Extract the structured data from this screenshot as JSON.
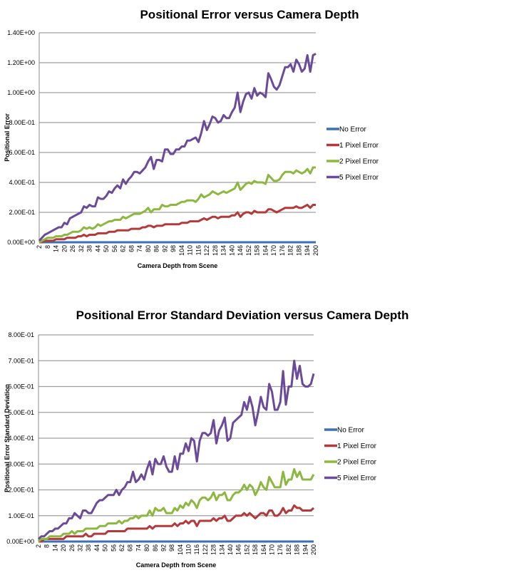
{
  "colors": {
    "No Error": "#3b6fb6",
    "1 Pixel Error": "#b3393a",
    "2 Pixel Error": "#8db840",
    "5 Pixel Error": "#6b4a9a",
    "grid": "#a0a0a0"
  },
  "chart_data": [
    {
      "type": "line",
      "title": "Positional Error versus Camera Depth",
      "xlabel": "Camera Depth from Scene",
      "ylabel": "Positional Error",
      "ylim": [
        0,
        1.4
      ],
      "yticks": [
        "0.00E+00",
        "2.00E-01",
        "4.00E-01",
        "6.00E-01",
        "8.00E-01",
        "1.00E+00",
        "1.20E+00",
        "1.40E+00"
      ],
      "x_start": 2,
      "x_end": 200,
      "x_step": 2,
      "xtick_labels": [
        "2",
        "8",
        "14",
        "20",
        "26",
        "32",
        "38",
        "44",
        "50",
        "56",
        "62",
        "68",
        "74",
        "80",
        "86",
        "92",
        "98",
        "104",
        "110",
        "116",
        "122",
        "128",
        "134",
        "140",
        "146",
        "152",
        "158",
        "164",
        "170",
        "176",
        "182",
        "188",
        "194",
        "200"
      ],
      "grid": "horizontal",
      "legend": "right",
      "series": [
        {
          "name": "No Error",
          "values": [
            0,
            0,
            0,
            0,
            0,
            0,
            0,
            0,
            0,
            0,
            0,
            0,
            0,
            0,
            0,
            0,
            0,
            0,
            0,
            0,
            0,
            0,
            0,
            0,
            0,
            0,
            0,
            0,
            0,
            0,
            0,
            0,
            0,
            0,
            0,
            0,
            0,
            0,
            0,
            0,
            0,
            0,
            0,
            0,
            0,
            0,
            0,
            0,
            0,
            0,
            0,
            0,
            0,
            0,
            0,
            0,
            0,
            0,
            0,
            0,
            0,
            0,
            0,
            0,
            0,
            0,
            0,
            0,
            0,
            0,
            0,
            0,
            0,
            0,
            0,
            0,
            0,
            0,
            0,
            0,
            0,
            0,
            0,
            0,
            0,
            0,
            0,
            0,
            0,
            0,
            0,
            0,
            0,
            0,
            0,
            0,
            0,
            0,
            0,
            0
          ]
        },
        {
          "name": "1 Pixel Error",
          "values": [
            0.0,
            0.0,
            0.01,
            0.01,
            0.01,
            0.01,
            0.02,
            0.02,
            0.02,
            0.02,
            0.03,
            0.03,
            0.03,
            0.03,
            0.04,
            0.04,
            0.05,
            0.04,
            0.05,
            0.05,
            0.05,
            0.06,
            0.06,
            0.06,
            0.06,
            0.07,
            0.07,
            0.07,
            0.08,
            0.08,
            0.08,
            0.08,
            0.08,
            0.09,
            0.09,
            0.09,
            0.09,
            0.1,
            0.1,
            0.11,
            0.11,
            0.1,
            0.11,
            0.11,
            0.11,
            0.12,
            0.12,
            0.12,
            0.12,
            0.12,
            0.12,
            0.13,
            0.13,
            0.13,
            0.14,
            0.14,
            0.14,
            0.14,
            0.15,
            0.16,
            0.15,
            0.16,
            0.17,
            0.17,
            0.16,
            0.17,
            0.17,
            0.17,
            0.17,
            0.18,
            0.18,
            0.2,
            0.17,
            0.19,
            0.2,
            0.2,
            0.19,
            0.21,
            0.2,
            0.2,
            0.2,
            0.2,
            0.22,
            0.22,
            0.21,
            0.2,
            0.21,
            0.22,
            0.23,
            0.23,
            0.23,
            0.23,
            0.24,
            0.23,
            0.23,
            0.24,
            0.25,
            0.23,
            0.25,
            0.25
          ]
        },
        {
          "name": "2 Pixel Error",
          "values": [
            0.0,
            0.01,
            0.02,
            0.03,
            0.03,
            0.03,
            0.04,
            0.04,
            0.04,
            0.05,
            0.05,
            0.06,
            0.07,
            0.07,
            0.07,
            0.08,
            0.1,
            0.09,
            0.1,
            0.09,
            0.1,
            0.12,
            0.11,
            0.12,
            0.13,
            0.14,
            0.14,
            0.15,
            0.15,
            0.15,
            0.17,
            0.16,
            0.17,
            0.18,
            0.19,
            0.19,
            0.19,
            0.2,
            0.21,
            0.23,
            0.2,
            0.22,
            0.22,
            0.22,
            0.25,
            0.24,
            0.24,
            0.25,
            0.25,
            0.25,
            0.26,
            0.27,
            0.27,
            0.28,
            0.28,
            0.28,
            0.27,
            0.29,
            0.32,
            0.3,
            0.31,
            0.32,
            0.34,
            0.33,
            0.32,
            0.33,
            0.34,
            0.33,
            0.34,
            0.35,
            0.36,
            0.4,
            0.35,
            0.37,
            0.39,
            0.4,
            0.39,
            0.41,
            0.4,
            0.4,
            0.4,
            0.39,
            0.45,
            0.43,
            0.41,
            0.41,
            0.42,
            0.45,
            0.47,
            0.47,
            0.47,
            0.46,
            0.48,
            0.47,
            0.46,
            0.47,
            0.49,
            0.46,
            0.5,
            0.5
          ]
        },
        {
          "name": "5 Pixel Error",
          "values": [
            0.01,
            0.03,
            0.05,
            0.06,
            0.07,
            0.08,
            0.09,
            0.1,
            0.1,
            0.13,
            0.12,
            0.16,
            0.17,
            0.18,
            0.19,
            0.2,
            0.24,
            0.23,
            0.25,
            0.24,
            0.24,
            0.3,
            0.29,
            0.29,
            0.31,
            0.34,
            0.33,
            0.36,
            0.38,
            0.36,
            0.42,
            0.39,
            0.42,
            0.44,
            0.47,
            0.47,
            0.46,
            0.48,
            0.5,
            0.54,
            0.57,
            0.49,
            0.55,
            0.55,
            0.54,
            0.62,
            0.62,
            0.59,
            0.59,
            0.62,
            0.62,
            0.64,
            0.64,
            0.68,
            0.68,
            0.69,
            0.7,
            0.67,
            0.73,
            0.81,
            0.75,
            0.79,
            0.84,
            0.83,
            0.8,
            0.81,
            0.85,
            0.83,
            0.83,
            0.87,
            0.9,
            1.0,
            0.87,
            0.94,
            0.99,
            1.0,
            0.96,
            1.03,
            0.98,
            1.0,
            0.99,
            0.97,
            1.13,
            1.09,
            1.04,
            1.02,
            1.05,
            1.11,
            1.17,
            1.17,
            1.19,
            1.14,
            1.22,
            1.19,
            1.14,
            1.16,
            1.25,
            1.14,
            1.25,
            1.26
          ]
        }
      ]
    },
    {
      "type": "line",
      "title": "Positional Error Standard Deviation versus Camera Depth",
      "xlabel": "Camera Depth from Scene",
      "ylabel": "Positional Error Standard Deviation",
      "ylim": [
        0,
        0.8
      ],
      "yticks": [
        "0.00E+00",
        "1.00E-01",
        "2.00E-01",
        "3.00E-01",
        "4.00E-01",
        "5.00E-01",
        "6.00E-01",
        "7.00E-01",
        "8.00E-01"
      ],
      "x_start": 2,
      "x_end": 200,
      "x_step": 2,
      "xtick_labels": [
        "2",
        "8",
        "14",
        "20",
        "26",
        "32",
        "38",
        "44",
        "50",
        "56",
        "62",
        "68",
        "74",
        "80",
        "86",
        "92",
        "98",
        "104",
        "110",
        "116",
        "122",
        "128",
        "134",
        "140",
        "146",
        "152",
        "158",
        "164",
        "170",
        "176",
        "182",
        "188",
        "194",
        "200"
      ],
      "grid": "horizontal",
      "legend": "right",
      "series": [
        {
          "name": "No Error",
          "values": [
            0,
            0,
            0,
            0,
            0,
            0,
            0,
            0,
            0,
            0,
            0,
            0,
            0,
            0,
            0,
            0,
            0,
            0,
            0,
            0,
            0,
            0,
            0,
            0,
            0,
            0,
            0,
            0,
            0,
            0,
            0,
            0,
            0,
            0,
            0,
            0,
            0,
            0,
            0,
            0,
            0,
            0,
            0,
            0,
            0,
            0,
            0,
            0,
            0,
            0,
            0,
            0,
            0,
            0,
            0,
            0,
            0,
            0,
            0,
            0,
            0,
            0,
            0,
            0,
            0,
            0,
            0,
            0,
            0,
            0,
            0,
            0,
            0,
            0,
            0,
            0,
            0,
            0,
            0,
            0,
            0,
            0,
            0,
            0,
            0,
            0,
            0,
            0,
            0,
            0,
            0,
            0,
            0,
            0,
            0,
            0,
            0,
            0,
            0,
            0
          ]
        },
        {
          "name": "1 Pixel Error",
          "values": [
            0.0,
            0.0,
            0.01,
            0.01,
            0.01,
            0.01,
            0.01,
            0.01,
            0.01,
            0.01,
            0.02,
            0.02,
            0.02,
            0.02,
            0.02,
            0.02,
            0.02,
            0.03,
            0.02,
            0.02,
            0.03,
            0.03,
            0.03,
            0.03,
            0.03,
            0.04,
            0.04,
            0.04,
            0.04,
            0.04,
            0.04,
            0.04,
            0.05,
            0.05,
            0.05,
            0.05,
            0.05,
            0.05,
            0.05,
            0.05,
            0.06,
            0.05,
            0.06,
            0.06,
            0.06,
            0.06,
            0.06,
            0.06,
            0.06,
            0.07,
            0.06,
            0.07,
            0.07,
            0.08,
            0.07,
            0.08,
            0.08,
            0.06,
            0.08,
            0.08,
            0.08,
            0.08,
            0.08,
            0.09,
            0.08,
            0.09,
            0.09,
            0.1,
            0.08,
            0.08,
            0.09,
            0.1,
            0.1,
            0.1,
            0.11,
            0.1,
            0.11,
            0.1,
            0.09,
            0.1,
            0.11,
            0.11,
            0.1,
            0.12,
            0.12,
            0.1,
            0.1,
            0.11,
            0.13,
            0.11,
            0.12,
            0.12,
            0.14,
            0.13,
            0.13,
            0.12,
            0.12,
            0.12,
            0.12,
            0.13
          ]
        },
        {
          "name": "2 Pixel Error",
          "values": [
            0.0,
            0.01,
            0.01,
            0.01,
            0.02,
            0.02,
            0.02,
            0.02,
            0.02,
            0.03,
            0.03,
            0.03,
            0.04,
            0.03,
            0.04,
            0.04,
            0.04,
            0.05,
            0.05,
            0.05,
            0.05,
            0.05,
            0.06,
            0.06,
            0.06,
            0.07,
            0.07,
            0.07,
            0.07,
            0.08,
            0.07,
            0.08,
            0.08,
            0.09,
            0.09,
            0.1,
            0.09,
            0.1,
            0.1,
            0.1,
            0.12,
            0.1,
            0.13,
            0.12,
            0.12,
            0.13,
            0.11,
            0.11,
            0.11,
            0.13,
            0.12,
            0.14,
            0.13,
            0.15,
            0.14,
            0.16,
            0.15,
            0.13,
            0.16,
            0.17,
            0.17,
            0.16,
            0.17,
            0.19,
            0.16,
            0.18,
            0.18,
            0.19,
            0.16,
            0.16,
            0.18,
            0.19,
            0.19,
            0.2,
            0.22,
            0.2,
            0.22,
            0.21,
            0.18,
            0.2,
            0.23,
            0.21,
            0.2,
            0.25,
            0.23,
            0.21,
            0.21,
            0.21,
            0.27,
            0.22,
            0.24,
            0.24,
            0.28,
            0.25,
            0.27,
            0.24,
            0.24,
            0.24,
            0.24,
            0.26
          ]
        },
        {
          "name": "5 Pixel Error",
          "values": [
            0.01,
            0.02,
            0.02,
            0.03,
            0.04,
            0.04,
            0.05,
            0.05,
            0.06,
            0.07,
            0.07,
            0.09,
            0.09,
            0.11,
            0.1,
            0.09,
            0.12,
            0.12,
            0.11,
            0.11,
            0.13,
            0.15,
            0.16,
            0.16,
            0.17,
            0.18,
            0.18,
            0.18,
            0.2,
            0.18,
            0.2,
            0.21,
            0.23,
            0.23,
            0.27,
            0.23,
            0.24,
            0.26,
            0.24,
            0.28,
            0.31,
            0.26,
            0.32,
            0.3,
            0.3,
            0.33,
            0.29,
            0.27,
            0.27,
            0.33,
            0.28,
            0.34,
            0.34,
            0.38,
            0.35,
            0.4,
            0.39,
            0.31,
            0.39,
            0.42,
            0.42,
            0.41,
            0.42,
            0.47,
            0.38,
            0.43,
            0.45,
            0.48,
            0.39,
            0.4,
            0.46,
            0.47,
            0.48,
            0.49,
            0.54,
            0.51,
            0.56,
            0.52,
            0.45,
            0.5,
            0.56,
            0.52,
            0.51,
            0.61,
            0.58,
            0.51,
            0.51,
            0.54,
            0.66,
            0.53,
            0.6,
            0.6,
            0.7,
            0.63,
            0.68,
            0.61,
            0.6,
            0.6,
            0.61,
            0.65
          ]
        }
      ]
    }
  ]
}
